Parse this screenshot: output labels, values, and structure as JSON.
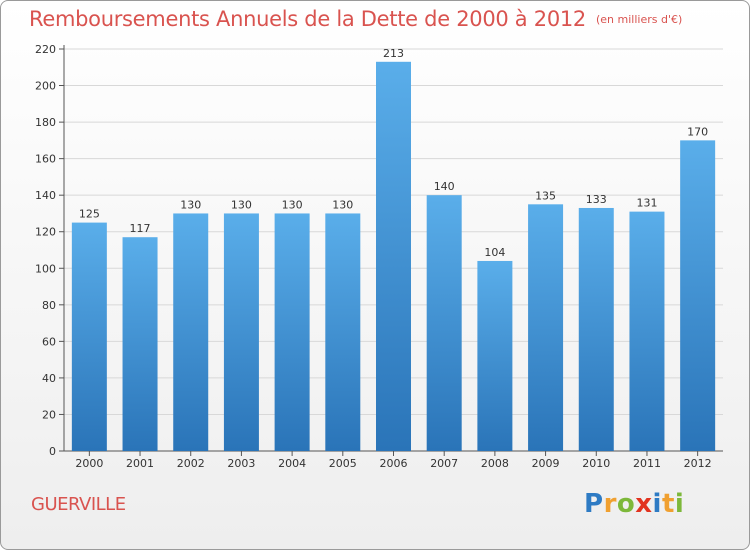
{
  "title": "Remboursements Annuels de la Dette de 2000 à 2012",
  "unit_note": "(en milliers d'€)",
  "commune": "GUERVILLE",
  "logo": [
    "P",
    "r",
    "o",
    "x",
    "i",
    "t",
    "i"
  ],
  "colors": {
    "bar": "#3b8fd8",
    "bar_top": "#5aaeea",
    "bar_bottom": "#2a74b8",
    "title": "#d9534f",
    "grid": "#d8d8d8"
  },
  "chart_data": {
    "type": "bar",
    "title": "Remboursements Annuels de la Dette de 2000 à 2012",
    "categories": [
      "2000",
      "2001",
      "2002",
      "2003",
      "2004",
      "2005",
      "2006",
      "2007",
      "2008",
      "2009",
      "2010",
      "2011",
      "2012"
    ],
    "values": [
      125,
      117,
      130,
      130,
      130,
      130,
      213,
      140,
      104,
      135,
      133,
      131,
      170
    ],
    "ylim": [
      0,
      220
    ],
    "yticks": [
      0,
      20,
      40,
      60,
      80,
      100,
      120,
      140,
      160,
      180,
      200,
      220
    ],
    "xlabel": "",
    "ylabel": "",
    "grid": true,
    "data_labels": true
  }
}
